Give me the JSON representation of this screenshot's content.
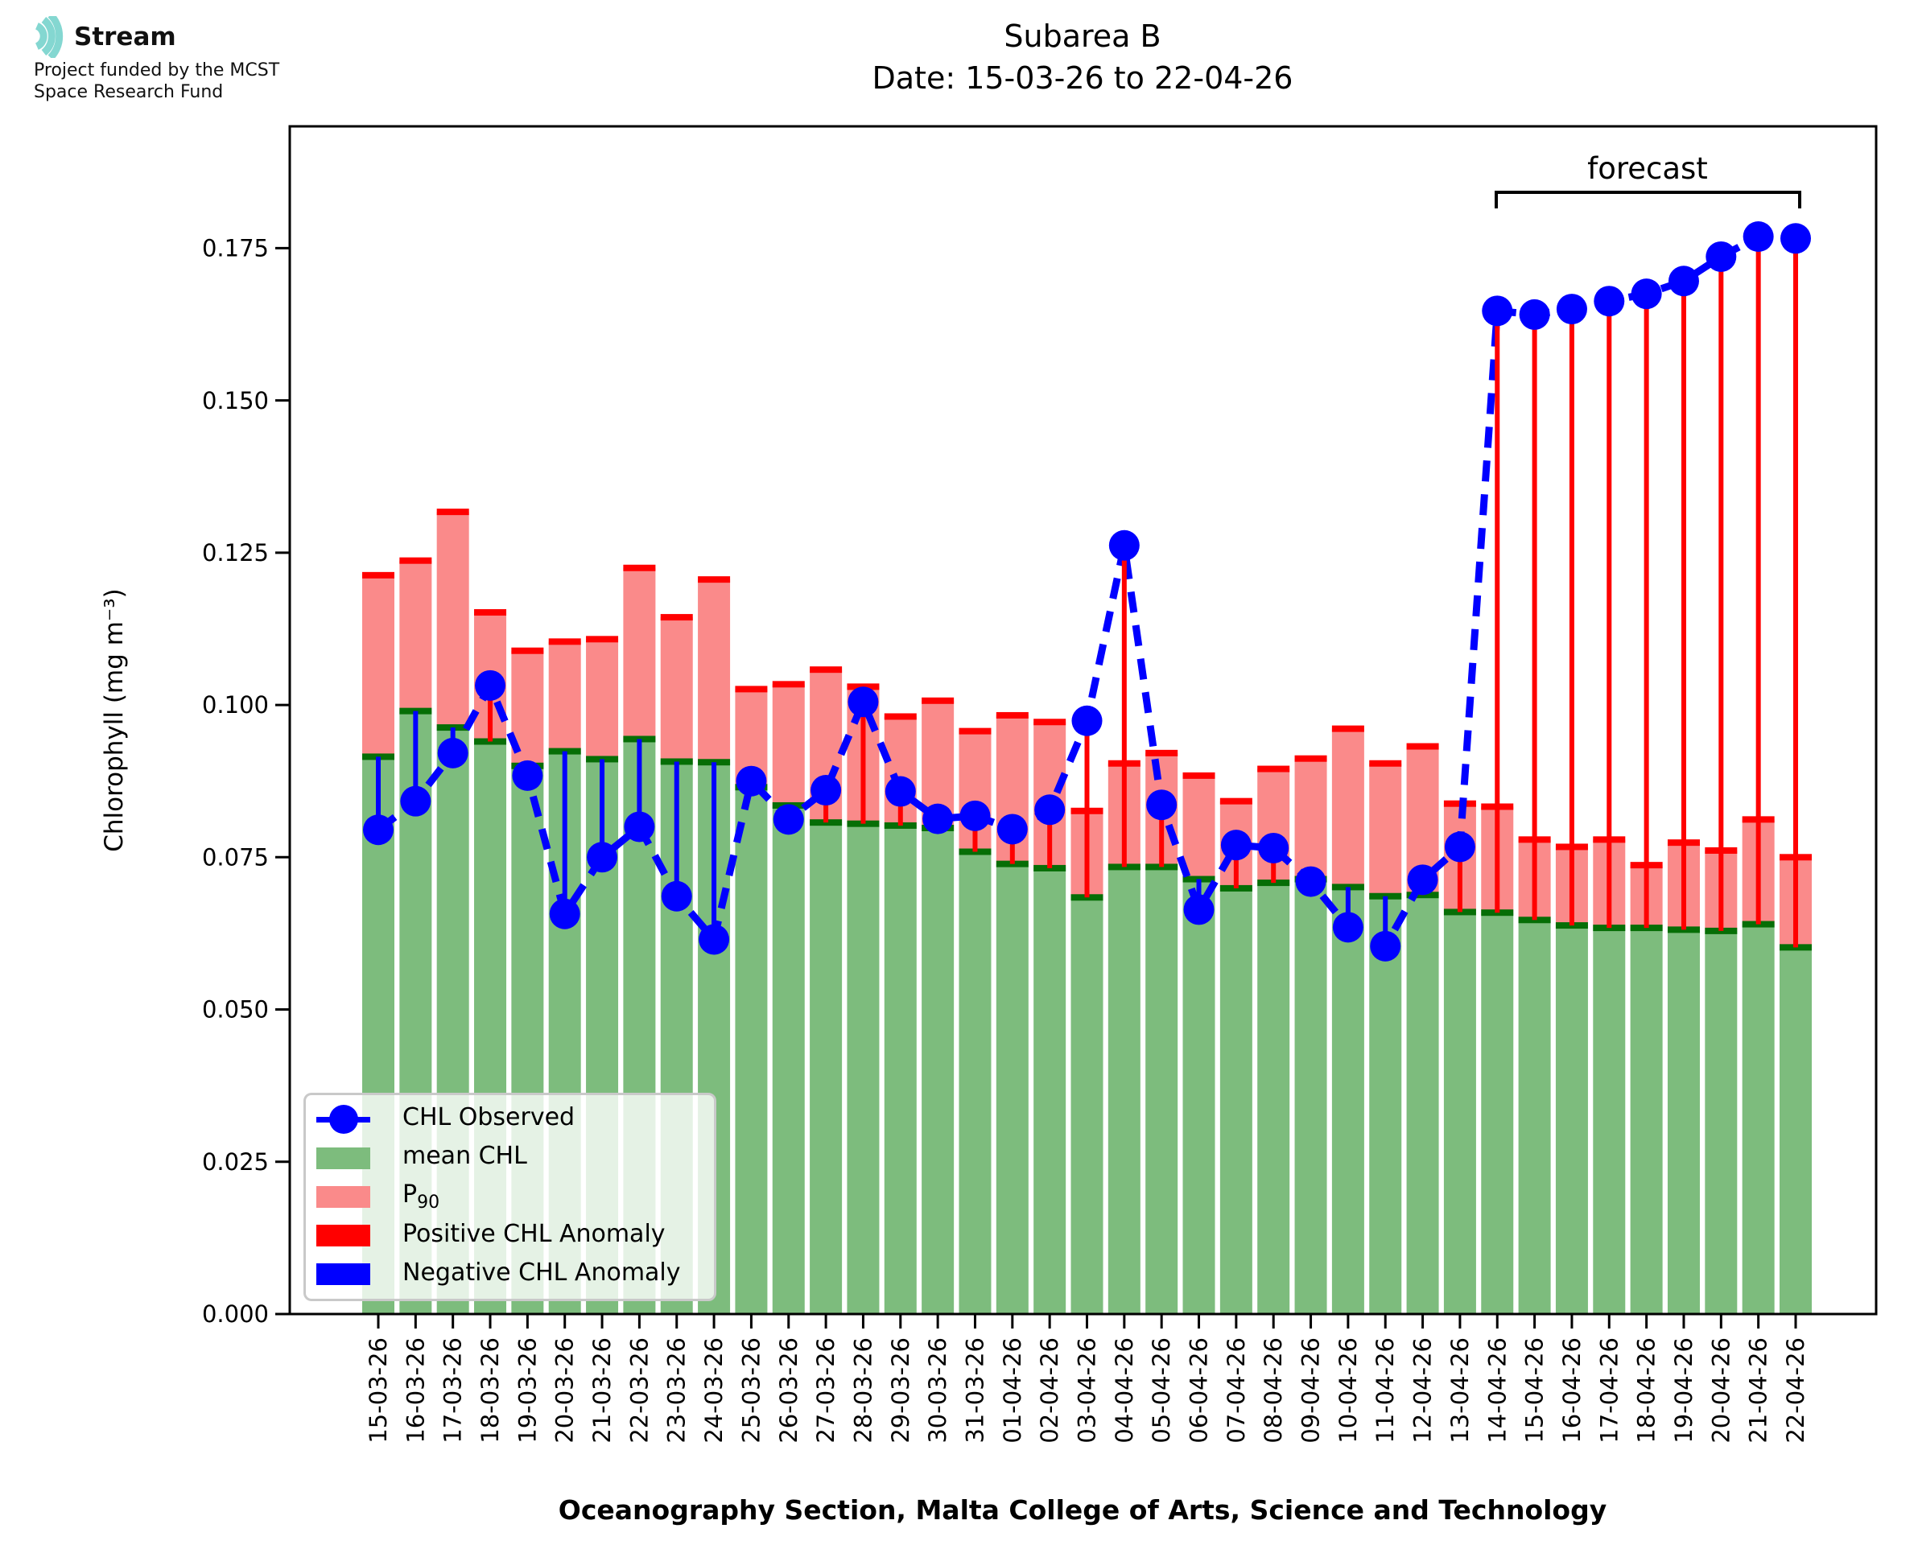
{
  "logo": {
    "brand": "Stream",
    "subtitle_line1": "Project funded by the MCST",
    "subtitle_line2": "Space Research Fund",
    "icon_color": "#84d7d1"
  },
  "title": {
    "line1": "Subarea B",
    "line2": "Date: 15-03-26 to 22-04-26"
  },
  "legend": {
    "items": [
      {
        "label": "CHL Observed",
        "type": "line-dot",
        "color": "#0000ff"
      },
      {
        "label": "mean CHL",
        "type": "patch",
        "color": "#7dbc7d"
      },
      {
        "label": "P",
        "sub": "90",
        "type": "patch",
        "color": "#fa8a8a"
      },
      {
        "label": "Positive CHL Anomaly",
        "type": "patch",
        "color": "#ff0000"
      },
      {
        "label": "Negative CHL Anomaly",
        "type": "patch",
        "color": "#0000ff"
      }
    ]
  },
  "axes": {
    "ylabel": "Chlorophyll (mg m⁻³)",
    "xlabel": "Oceanography Section, Malta College of Arts, Science and Technology",
    "ytick_labels": [
      "0.000",
      "0.025",
      "0.050",
      "0.075",
      "0.100",
      "0.125",
      "0.150",
      "0.175"
    ]
  },
  "chart_data": {
    "type": "bar",
    "subtype": "overlaid bars + dashed observation line with anomaly stems",
    "title": "Subarea B — Date: 15-03-26 to 22-04-26",
    "xlabel": "Oceanography Section, Malta College of Arts, Science and Technology",
    "ylabel": "Chlorophyll (mg m⁻³)",
    "ylim": [
      0,
      0.195
    ],
    "grid": false,
    "legend_position": "lower left",
    "categories": [
      "15-03-26",
      "16-03-26",
      "17-03-26",
      "18-03-26",
      "19-03-26",
      "20-03-26",
      "21-03-26",
      "22-03-26",
      "23-03-26",
      "24-03-26",
      "25-03-26",
      "26-03-26",
      "27-03-26",
      "28-03-26",
      "29-03-26",
      "30-03-26",
      "31-03-26",
      "01-04-26",
      "02-04-26",
      "03-04-26",
      "04-04-26",
      "05-04-26",
      "06-04-26",
      "07-04-26",
      "08-04-26",
      "09-04-26",
      "10-04-26",
      "11-04-26",
      "12-04-26",
      "13-04-26",
      "14-04-26",
      "15-04-26",
      "16-04-26",
      "17-04-26",
      "18-04-26",
      "19-04-26",
      "20-04-26",
      "21-04-26",
      "22-04-26"
    ],
    "series": [
      {
        "name": "mean CHL",
        "type": "bar",
        "fill": "#7dbc7d",
        "edge": "#066e06",
        "values": [
          0.0915,
          0.099,
          0.0963,
          0.094,
          0.09,
          0.0924,
          0.0911,
          0.0944,
          0.0907,
          0.0906,
          0.0865,
          0.0835,
          0.0807,
          0.0805,
          0.0802,
          0.0798,
          0.0759,
          0.0739,
          0.0732,
          0.0684,
          0.0734,
          0.0734,
          0.0714,
          0.0699,
          0.0708,
          0.0714,
          0.0701,
          0.0686,
          0.0688,
          0.066,
          0.0659,
          0.0647,
          0.0638,
          0.0634,
          0.0634,
          0.0631,
          0.0629,
          0.064,
          0.0602
        ]
      },
      {
        "name": "P90",
        "type": "bar",
        "fill": "#fa8a8a",
        "edge": "#ff0000",
        "values": [
          0.1213,
          0.1237,
          0.1317,
          0.1152,
          0.1089,
          0.1104,
          0.1108,
          0.1225,
          0.1144,
          0.1206,
          0.1026,
          0.1034,
          0.1058,
          0.103,
          0.0981,
          0.1007,
          0.0957,
          0.0983,
          0.0972,
          0.0826,
          0.0904,
          0.0921,
          0.0884,
          0.0842,
          0.0895,
          0.0912,
          0.0961,
          0.0904,
          0.0932,
          0.0838,
          0.0833,
          0.0779,
          0.0767,
          0.0779,
          0.0737,
          0.0774,
          0.0761,
          0.0812,
          0.075
        ]
      },
      {
        "name": "CHL Observed",
        "type": "line",
        "style": "dashed",
        "marker": "circle",
        "color": "#0000ff",
        "values": [
          0.0795,
          0.0842,
          0.0921,
          0.1032,
          0.0884,
          0.0657,
          0.075,
          0.08,
          0.0686,
          0.0615,
          0.0875,
          0.0812,
          0.086,
          0.1005,
          0.0858,
          0.0813,
          0.0818,
          0.0796,
          0.0828,
          0.0974,
          0.1262,
          0.0836,
          0.0664,
          0.077,
          0.0765,
          0.071,
          0.0635,
          0.0604,
          0.0713,
          0.0767,
          0.1647,
          0.1641,
          0.165,
          0.1663,
          0.1675,
          0.1696,
          0.1736,
          0.1769,
          0.1766
        ]
      }
    ],
    "anomaly": {
      "description": "vertical stem drawn from mean CHL to CHL Observed at each date",
      "positive_color": "#ff0000",
      "negative_color": "#0000ff"
    },
    "forecast": {
      "label": "forecast",
      "start_category": "14-04-26",
      "end_category": "22-04-26"
    }
  }
}
